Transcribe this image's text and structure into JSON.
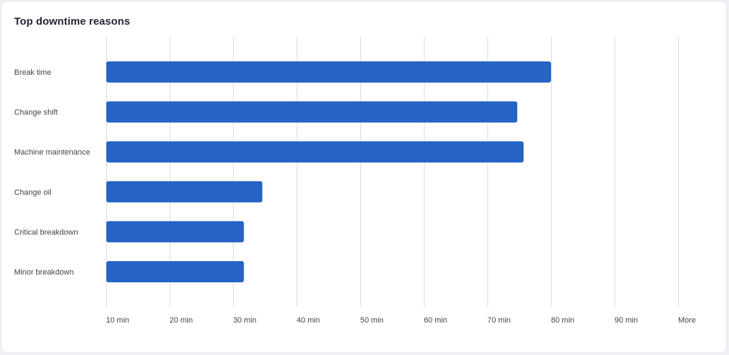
{
  "card": {
    "title": "Top downtime reasons"
  },
  "colors": {
    "bar": "#2563c4",
    "grid": "#d9dbdf",
    "label": "#3c4350"
  },
  "chart_data": {
    "type": "bar",
    "orientation": "horizontal",
    "title": "Top downtime reasons",
    "xlabel": "",
    "ylabel": "",
    "categories": [
      "Break time",
      "Change shift",
      "Machine maintenance",
      "Change oil",
      "Critical breakdown",
      "Minor breakdown"
    ],
    "values": [
      80,
      74.7,
      75.7,
      34.6,
      31.7,
      31.7
    ],
    "x_ticks": [
      10,
      20,
      30,
      40,
      50,
      60,
      70,
      80,
      90,
      100
    ],
    "x_tick_labels": [
      "10 min",
      "20 min",
      "30 min",
      "40 min",
      "50 min",
      "60 min",
      "70 min",
      "80 min",
      "90 min",
      "More"
    ],
    "xlim": [
      10,
      100
    ],
    "grid": true,
    "legend": "none"
  }
}
